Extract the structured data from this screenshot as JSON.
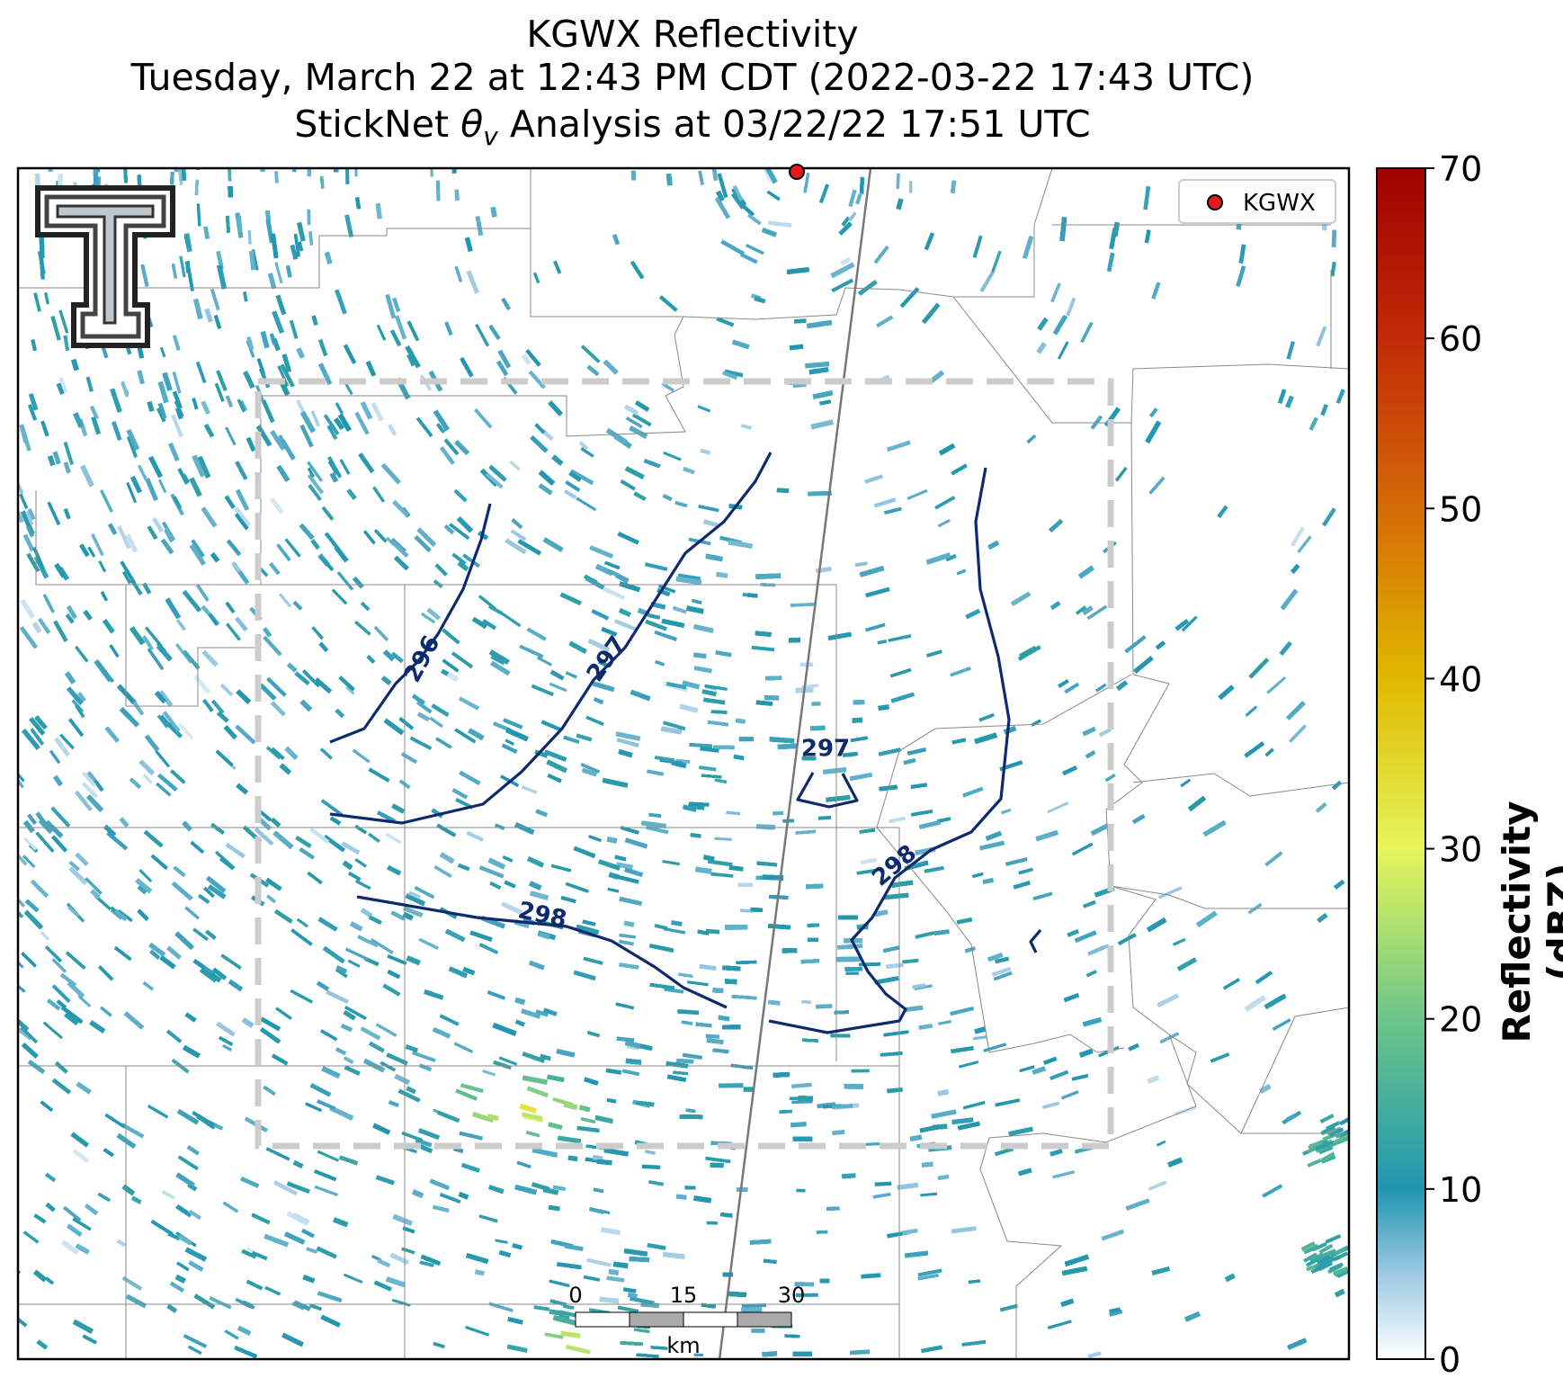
{
  "title": {
    "line1": "KGWX Reflectivity",
    "line2": "Tuesday, March 22 at 12:43 PM CDT (2022-03-22 17:43 UTC)",
    "line3": "StickNet θ_v Analysis at 03/22/22 17:51 UTC"
  },
  "legend": {
    "label": "KGWX",
    "marker_color": "#e41a1c"
  },
  "scale_bar": {
    "ticks": [
      "0",
      "15",
      "30"
    ],
    "unit": "km"
  },
  "colorbar": {
    "label": "Reflectivity (dBZ)",
    "ticks": [
      "0",
      "10",
      "20",
      "30",
      "40",
      "50",
      "60",
      "70"
    ],
    "stops": [
      {
        "v": 0,
        "c": "#ffffff"
      },
      {
        "v": 5,
        "c": "#9dc9e3"
      },
      {
        "v": 10,
        "c": "#2196b0"
      },
      {
        "v": 20,
        "c": "#6cc58a"
      },
      {
        "v": 30,
        "c": "#e6f55a"
      },
      {
        "v": 40,
        "c": "#e0b800"
      },
      {
        "v": 50,
        "c": "#d56a08"
      },
      {
        "v": 60,
        "c": "#c12a08"
      },
      {
        "v": 70,
        "c": "#a00000"
      }
    ]
  },
  "contour_color": "#0d2a6e",
  "chart_data": {
    "type": "heatmap",
    "title": "KGWX Reflectivity",
    "variable": "Reflectivity",
    "units": "dBZ",
    "value_range": [
      0,
      70
    ],
    "contour_labels": [
      "296",
      "297",
      "297",
      "298",
      "298"
    ],
    "contour_levels": [
      296,
      297,
      298
    ]
  }
}
